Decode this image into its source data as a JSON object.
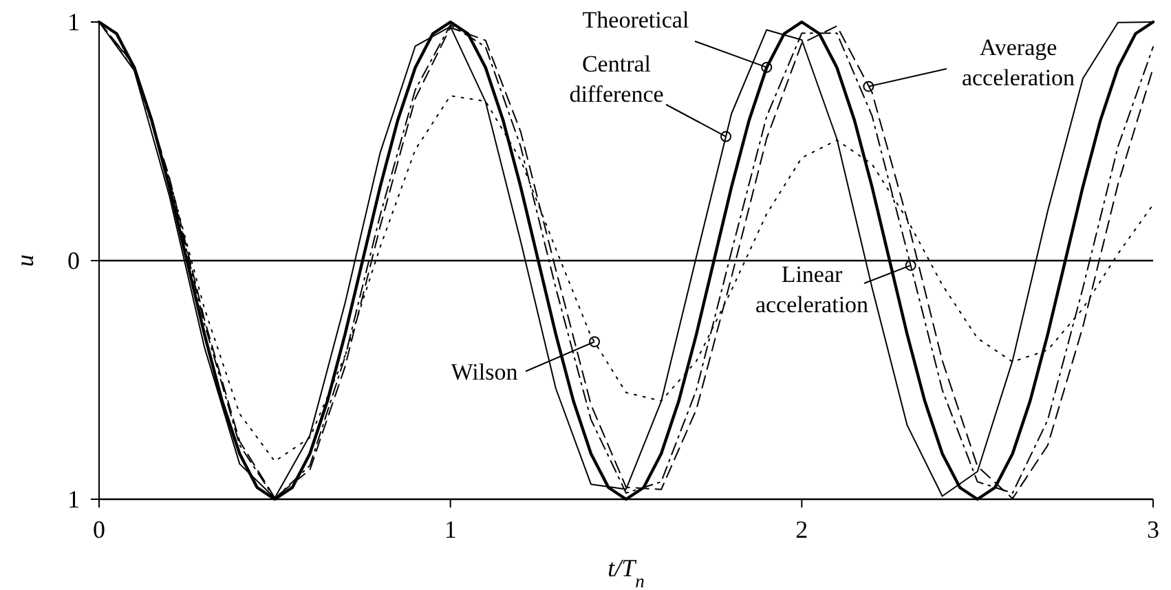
{
  "chart_data": {
    "type": "line",
    "xlabel": "t/T$_{n}$",
    "ylabel": "u",
    "xlim": [
      0,
      3
    ],
    "xticks": [
      0,
      1,
      2,
      3
    ],
    "ylim": [
      -1,
      1
    ],
    "yticks": [
      {
        "value": -1,
        "label": "1"
      },
      0,
      1
    ],
    "grid": false,
    "marker": "none",
    "annotations": [
      {
        "text": "Theoretical",
        "x": 1.9,
        "y": 0.81
      },
      {
        "text": "Central difference",
        "x": 1.784,
        "y": 0.52
      },
      {
        "text": "Average acceleration",
        "x": 2.19,
        "y": 0.73
      },
      {
        "text": "Linear acceleration",
        "x": 2.31,
        "y": -0.02
      },
      {
        "text": "Wilson",
        "x": 1.41,
        "y": -0.34
      }
    ],
    "ref_lines": [
      {
        "axis": "y",
        "value": 0,
        "label": null,
        "color": "#000000"
      }
    ],
    "series": [
      {
        "color": "#000000",
        "line_style": "solid",
        "x": [
          0,
          0.05,
          0.1,
          0.15,
          0.2,
          0.25,
          0.3,
          0.35,
          0.4,
          0.45,
          0.5,
          0.55,
          0.6,
          0.65,
          0.7,
          0.75,
          0.8,
          0.85,
          0.9,
          0.95,
          1,
          1.05,
          1.1,
          1.15,
          1.2,
          1.25,
          1.3,
          1.35,
          1.4,
          1.45,
          1.5,
          1.55,
          1.6,
          1.65,
          1.7,
          1.75,
          1.8,
          1.85,
          1.9,
          1.95,
          2,
          2.05,
          2.1,
          2.15,
          2.2,
          2.25,
          2.3,
          2.35,
          2.4,
          2.45,
          2.5,
          2.55,
          2.6,
          2.65,
          2.7,
          2.75,
          2.8,
          2.85,
          2.9,
          2.95,
          3
        ],
        "values": [
          1,
          0.951,
          0.809,
          0.588,
          0.309,
          0,
          -0.309,
          -0.588,
          -0.809,
          -0.951,
          -1,
          -0.951,
          -0.809,
          -0.588,
          -0.309,
          0,
          0.309,
          0.588,
          0.809,
          0.951,
          1,
          0.951,
          0.809,
          0.588,
          0.309,
          0,
          -0.309,
          -0.588,
          -0.809,
          -0.951,
          -1,
          -0.951,
          -0.809,
          -0.588,
          -0.309,
          0,
          0.309,
          0.588,
          0.809,
          0.951,
          1,
          0.951,
          0.809,
          0.588,
          0.309,
          0,
          -0.309,
          -0.588,
          -0.809,
          -0.951,
          -1,
          -0.951,
          -0.809,
          -0.588,
          -0.309,
          0,
          0.309,
          0.588,
          0.809,
          0.951,
          1
        ]
      },
      {
        "color": "#000000",
        "line_style": "solid",
        "x": [
          0,
          0.1,
          0.2,
          0.3,
          0.4,
          0.5,
          0.6,
          0.7,
          0.8,
          0.9,
          1,
          1.1,
          1.2,
          1.3,
          1.4,
          1.5,
          1.6,
          1.7,
          1.8,
          1.9,
          2,
          2.1,
          2.2,
          2.3,
          2.4,
          2.5,
          2.6,
          2.7,
          2.8,
          2.9,
          3
        ],
        "values": [
          1,
          0.797,
          0.272,
          -0.364,
          -0.852,
          -0.995,
          -0.733,
          -0.179,
          0.452,
          0.899,
          0.981,
          0.666,
          0.081,
          -0.536,
          -0.937,
          -0.958,
          -0.59,
          0.016,
          0.616,
          0.967,
          0.925,
          0.51,
          -0.113,
          -0.69,
          -0.987,
          -0.884,
          -0.419,
          0.208,
          0.763,
          0.998,
          1
        ]
      },
      {
        "color": "#000000",
        "line_style": "dashed",
        "x": [
          0,
          0.1,
          0.2,
          0.3,
          0.4,
          0.5,
          0.6,
          0.7,
          0.8,
          0.9,
          1,
          1.1,
          1.2,
          1.3,
          1.4,
          1.5,
          1.6,
          1.7,
          1.8,
          1.9,
          2,
          2.1,
          2.2,
          2.3,
          2.4,
          2.5,
          2.6,
          2.7,
          2.8,
          2.9,
          3
        ],
        "values": [
          1,
          0.821,
          0.349,
          -0.248,
          -0.757,
          -0.994,
          -0.877,
          -0.445,
          0.143,
          0.68,
          0.977,
          0.923,
          0.54,
          -0.038,
          -0.603,
          -0.95,
          -0.959,
          -0.624,
          -0.069,
          0.512,
          0.911,
          0.983,
          0.705,
          0.174,
          -0.419,
          -0.862,
          -0.997,
          -0.774,
          -0.278,
          0.32,
          0.807
        ]
      },
      {
        "color": "#000000",
        "line_style": "dashdot",
        "x": [
          0,
          0.1,
          0.2,
          0.3,
          0.4,
          0.5,
          0.6,
          0.7,
          0.8,
          0.9,
          1,
          1.1,
          1.2,
          1.3,
          1.4,
          1.5,
          1.6,
          1.7,
          1.8,
          1.9,
          2,
          2.1,
          2.2,
          2.3,
          2.4,
          2.5,
          2.6,
          2.7,
          2.8,
          2.9,
          3
        ],
        "values": [
          1,
          0.818,
          0.337,
          -0.265,
          -0.773,
          -0.997,
          -0.859,
          -0.404,
          0.19,
          0.716,
          0.988,
          0.896,
          0.478,
          -0.115,
          -0.666,
          -0.974,
          -0.927,
          -0.542,
          0.038,
          0.604,
          0.953,
          0.953,
          0.607,
          0.038,
          -0.542,
          -0.927,
          -0.974,
          -0.668,
          -0.116,
          0.478,
          0.896
        ]
      },
      {
        "color": "#000000",
        "line_style": "dotted",
        "x": [
          0,
          0.1,
          0.2,
          0.3,
          0.4,
          0.5,
          0.6,
          0.7,
          0.8,
          0.9,
          1,
          1.1,
          1.2,
          1.3,
          1.4,
          1.5,
          1.6,
          1.7,
          1.8,
          1.9,
          2,
          2.1,
          2.2,
          2.3,
          2.4,
          2.5,
          2.6,
          2.7,
          2.8,
          2.9,
          3
        ],
        "values": [
          1,
          0.8,
          0.342,
          -0.201,
          -0.642,
          -0.841,
          -0.742,
          -0.398,
          0.057,
          0.465,
          0.691,
          0.668,
          0.422,
          0.049,
          -0.317,
          -0.553,
          -0.588,
          -0.421,
          -0.124,
          0.196,
          0.431,
          0.505,
          0.404,
          0.173,
          -0.102,
          -0.325,
          -0.424,
          -0.375,
          -0.201,
          0.029,
          0.235
        ]
      }
    ]
  }
}
